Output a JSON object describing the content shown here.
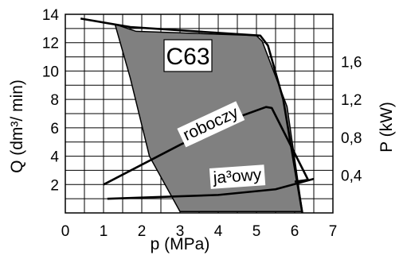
{
  "chart_data": {
    "type": "line",
    "model_label": "C63",
    "xlabel": "p (MPa)",
    "ylabel_left": "Q (dm³/ min)",
    "ylabel_right": "P (kW)",
    "xlim": [
      0,
      7
    ],
    "ylim_left": [
      0,
      14
    ],
    "ylim_right": [
      0,
      2.1
    ],
    "x_ticks": [
      0,
      1,
      2,
      3,
      4,
      5,
      6,
      7
    ],
    "x_tick_labels": [
      "0",
      "1",
      "2",
      "3",
      "4",
      "5",
      "6",
      "7"
    ],
    "y_ticks_left": [
      2,
      4,
      6,
      8,
      10,
      12,
      14
    ],
    "y_tick_labels_left": [
      "2",
      "4",
      "6",
      "8",
      "10",
      "12",
      "14"
    ],
    "y_ticks_right": [
      0.4,
      0.8,
      1.2,
      1.6
    ],
    "y_tick_labels_right": [
      "0,4",
      "0,8",
      "1,2",
      "1,6"
    ],
    "grid": true,
    "region": {
      "name": "",
      "color": "#808080",
      "points": [
        [
          1.3,
          13.3
        ],
        [
          1.85,
          12.8
        ],
        [
          5.0,
          12.5
        ],
        [
          5.15,
          12.1
        ],
        [
          5.8,
          7.5
        ],
        [
          6.2,
          0.1
        ],
        [
          3.0,
          0.1
        ],
        [
          2.2,
          4.0
        ],
        [
          1.7,
          9.5
        ],
        [
          1.3,
          13.3
        ]
      ]
    },
    "series": [
      {
        "name": "Q",
        "axis": "left",
        "color": "#000000",
        "points": [
          [
            0.4,
            13.7
          ],
          [
            1.7,
            13.1
          ],
          [
            5.1,
            12.5
          ],
          [
            5.3,
            11.8
          ],
          [
            5.7,
            8.0
          ],
          [
            6.2,
            0.0
          ]
        ]
      },
      {
        "name": "roboczy",
        "axis": "right",
        "color": "#000000",
        "points": [
          [
            1.0,
            0.3
          ],
          [
            3.0,
            0.72
          ],
          [
            4.5,
            1.01
          ],
          [
            5.25,
            1.12
          ],
          [
            5.4,
            1.11
          ],
          [
            6.35,
            0.35
          ],
          [
            6.0,
            0.33
          ]
        ]
      },
      {
        "name": "jałowy",
        "axis": "right",
        "color": "#000000",
        "points": [
          [
            1.1,
            0.15
          ],
          [
            4.0,
            0.19
          ],
          [
            5.5,
            0.25
          ],
          [
            6.5,
            0.36
          ]
        ]
      }
    ],
    "annotations": [
      {
        "text": "roboczy",
        "x": 3.8,
        "y": 6.3,
        "angle": -25
      },
      {
        "text": "ja³owy",
        "x": 4.5,
        "y": 2.6,
        "angle": -4
      }
    ]
  }
}
